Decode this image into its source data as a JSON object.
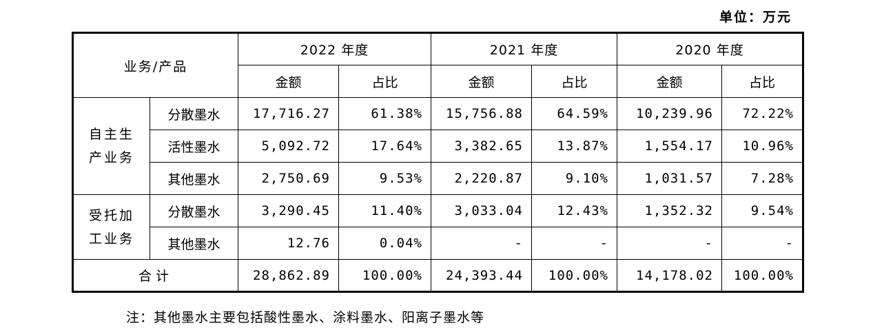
{
  "unit_label": "单位：万元",
  "header": {
    "category": "业务/产品",
    "years": [
      "2022 年度",
      "2021 年度",
      "2020 年度"
    ],
    "amount": "金额",
    "ratio": "占比"
  },
  "groups": [
    {
      "name_line1": "自主生",
      "name_line2": "产业务",
      "rows": [
        {
          "product": "分散墨水",
          "v": [
            "17,716.27",
            "61.38%",
            "15,756.88",
            "64.59%",
            "10,239.96",
            "72.22%"
          ]
        },
        {
          "product": "活性墨水",
          "v": [
            "5,092.72",
            "17.64%",
            "3,382.65",
            "13.87%",
            "1,554.17",
            "10.96%"
          ]
        },
        {
          "product": "其他墨水",
          "v": [
            "2,750.69",
            "9.53%",
            "2,220.87",
            "9.10%",
            "1,031.57",
            "7.28%"
          ]
        }
      ]
    },
    {
      "name_line1": "受托加",
      "name_line2": "工业务",
      "rows": [
        {
          "product": "分散墨水",
          "v": [
            "3,290.45",
            "11.40%",
            "3,033.04",
            "12.43%",
            "1,352.32",
            "9.54%"
          ]
        },
        {
          "product": "其他墨水",
          "v": [
            "12.76",
            "0.04%",
            "-",
            "-",
            "-",
            "-"
          ]
        }
      ]
    }
  ],
  "total": {
    "label": "合计",
    "v": [
      "28,862.89",
      "100.00%",
      "24,393.44",
      "100.00%",
      "14,178.02",
      "100.00%"
    ]
  },
  "note": "注：其他墨水主要包括酸性墨水、涂料墨水、阳离子墨水等"
}
